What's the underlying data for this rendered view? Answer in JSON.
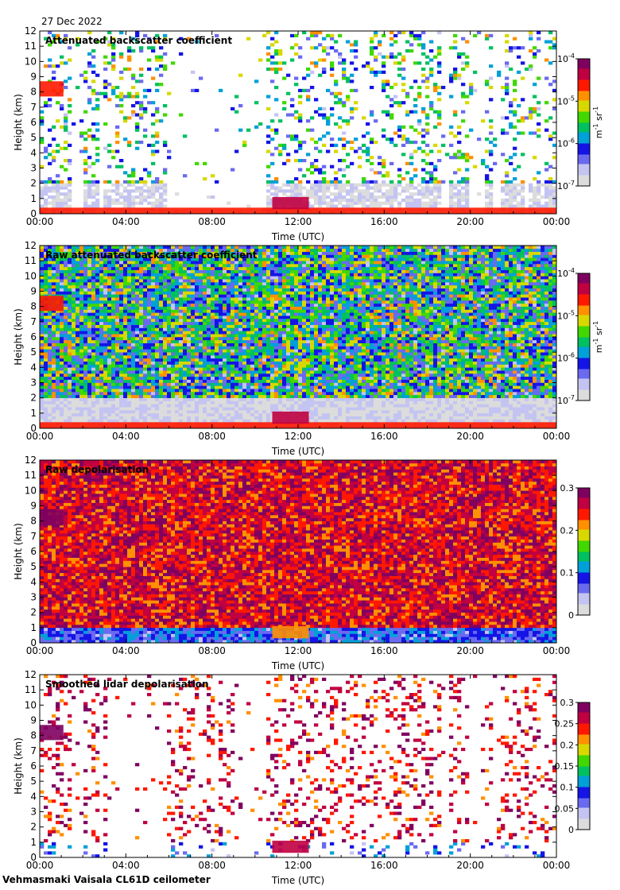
{
  "header": {
    "date": "27 Dec 2022"
  },
  "footer": {
    "instrument": "Vehmasmaki Vaisala CL61D ceilometer"
  },
  "colors": {
    "colormap": [
      "#dcdcdc",
      "#c4c4f2",
      "#6a6af0",
      "#1414e6",
      "#00a0d8",
      "#00c060",
      "#40d800",
      "#d8d800",
      "#ff9000",
      "#ff1800",
      "#c00040",
      "#800060"
    ],
    "background": "#ffffff"
  },
  "chart_data": [
    {
      "type": "heatmap",
      "title": "Attenuated backscatter coefficient",
      "xlabel": "Time (UTC)",
      "ylabel": "Height (km)",
      "x_ticks": [
        "00:00",
        "04:00",
        "08:00",
        "12:00",
        "16:00",
        "20:00",
        "00:00"
      ],
      "xlim_hours": [
        0,
        24
      ],
      "y_ticks": [
        0,
        1,
        2,
        3,
        4,
        5,
        6,
        7,
        8,
        9,
        10,
        11,
        12
      ],
      "ylim": [
        0,
        12
      ],
      "colorbar": {
        "scale": "log",
        "min": 1e-07,
        "max": 0.0001,
        "tick_bases": [
          "10",
          "10",
          "10",
          "10"
        ],
        "tick_exps": [
          "-7",
          "-6",
          "-5",
          "-4"
        ],
        "unit": "m",
        "unit_exp": "-1",
        "unit2": "sr",
        "unit2_exp": "-1"
      },
      "features": [
        {
          "name": "aerosol layer",
          "t": [
            0,
            1.1
          ],
          "h": [
            7.7,
            8.7
          ],
          "level": 0.82
        },
        {
          "name": "boundary layer",
          "t": [
            0,
            24
          ],
          "h": [
            0,
            0.4
          ],
          "level": 0.75
        },
        {
          "name": "low cloud",
          "t": [
            10.8,
            12.5
          ],
          "h": [
            0.3,
            1.1
          ],
          "level": 0.9
        }
      ],
      "gaps_hours": [
        [
          1.4,
          2.1
        ],
        [
          2.7,
          3.0
        ],
        [
          6.0,
          9.0
        ],
        [
          9.1,
          10.5
        ],
        [
          18.6,
          19.0
        ],
        [
          20.0,
          20.6
        ],
        [
          21.0,
          21.4
        ],
        [
          22.5,
          22.7
        ],
        [
          23.3,
          23.5
        ]
      ],
      "noise_density": 0.22
    },
    {
      "type": "heatmap",
      "title": "Raw attenuated backscatter coefficient",
      "xlabel": "Time (UTC)",
      "ylabel": "Height (km)",
      "x_ticks": [
        "00:00",
        "04:00",
        "08:00",
        "12:00",
        "16:00",
        "20:00",
        "00:00"
      ],
      "xlim_hours": [
        0,
        24
      ],
      "y_ticks": [
        0,
        1,
        2,
        3,
        4,
        5,
        6,
        7,
        8,
        9,
        10,
        11,
        12
      ],
      "ylim": [
        0,
        12
      ],
      "colorbar": {
        "scale": "log",
        "min": 1e-07,
        "max": 0.0001,
        "tick_bases": [
          "10",
          "10",
          "10",
          "10"
        ],
        "tick_exps": [
          "-7",
          "-6",
          "-5",
          "-4"
        ],
        "unit": "m",
        "unit_exp": "-1",
        "unit2": "sr",
        "unit2_exp": "-1"
      },
      "features": [
        {
          "name": "aerosol layer",
          "t": [
            0,
            1.1
          ],
          "h": [
            7.7,
            8.7
          ],
          "level": 0.82
        },
        {
          "name": "boundary layer",
          "t": [
            0,
            24
          ],
          "h": [
            0,
            0.4
          ],
          "level": 0.75
        },
        {
          "name": "low cloud",
          "t": [
            10.8,
            12.5
          ],
          "h": [
            0.3,
            1.1
          ],
          "level": 0.9
        }
      ],
      "gaps_hours": [],
      "noise_density": 1.0
    },
    {
      "type": "heatmap",
      "title": "Raw depolarisation",
      "xlabel": "Time (UTC)",
      "ylabel": "Height (km)",
      "x_ticks": [
        "00:00",
        "04:00",
        "08:00",
        "12:00",
        "16:00",
        "20:00",
        "00:00"
      ],
      "xlim_hours": [
        0,
        24
      ],
      "y_ticks": [
        0,
        1,
        2,
        3,
        4,
        5,
        6,
        7,
        8,
        9,
        10,
        11,
        12
      ],
      "ylim": [
        0,
        12
      ],
      "colorbar": {
        "scale": "linear",
        "min": 0,
        "max": 0.3,
        "ticks": [
          "0",
          "0.1",
          "0.2",
          "0.3"
        ]
      },
      "features": [
        {
          "name": "aerosol layer",
          "t": [
            0,
            1.1
          ],
          "h": [
            7.7,
            8.7
          ],
          "level": 0.97
        },
        {
          "name": "low cloud",
          "t": [
            10.8,
            12.5
          ],
          "h": [
            0.3,
            1.1
          ],
          "level": 0.7
        }
      ],
      "gaps_hours": [],
      "noise_density": 1.0
    },
    {
      "type": "heatmap",
      "title": "Smoothed lidar depolarisation",
      "xlabel": "Time (UTC)",
      "ylabel": "Height (km)",
      "x_ticks": [
        "00:00",
        "04:00",
        "08:00",
        "12:00",
        "16:00",
        "20:00",
        "00:00"
      ],
      "xlim_hours": [
        0,
        24
      ],
      "y_ticks": [
        0,
        1,
        2,
        3,
        4,
        5,
        6,
        7,
        8,
        9,
        10,
        11,
        12
      ],
      "ylim": [
        0,
        12
      ],
      "colorbar": {
        "scale": "linear",
        "min": 0,
        "max": 0.3,
        "ticks": [
          "0",
          "0.05",
          "0.1",
          "0.15",
          "0.2",
          "0.25",
          "0.3"
        ]
      },
      "features": [
        {
          "name": "aerosol layer",
          "t": [
            0,
            1.1
          ],
          "h": [
            7.7,
            8.7
          ],
          "level": 0.97
        },
        {
          "name": "low cloud",
          "t": [
            10.8,
            12.5
          ],
          "h": [
            0.3,
            1.1
          ],
          "level": 0.85
        }
      ],
      "gaps_hours": [
        [
          1.4,
          2.1
        ],
        [
          2.7,
          3.0
        ],
        [
          3.1,
          6.0
        ],
        [
          9.0,
          10.5
        ],
        [
          18.6,
          19.0
        ],
        [
          20.0,
          20.6
        ],
        [
          21.0,
          21.4
        ]
      ],
      "noise_density": 0.18
    }
  ]
}
